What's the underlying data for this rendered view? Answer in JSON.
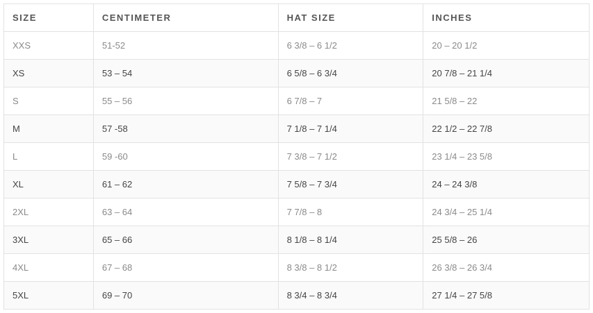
{
  "headers": [
    "SIZE",
    "CENTIMETER",
    "HAT SIZE",
    "INCHES"
  ],
  "rows": [
    [
      "XXS",
      "51-52",
      "6 3/8 – 6 1/2",
      "20 – 20 1/2"
    ],
    [
      "XS",
      "53 – 54",
      "6 5/8 – 6 3/4",
      "20 7/8 – 21 1/4"
    ],
    [
      "S",
      "55 – 56",
      "6 7/8 – 7",
      "21 5/8 – 22"
    ],
    [
      "M",
      "57 -58",
      "7 1/8 – 7 1/4",
      "22 1/2 – 22 7/8"
    ],
    [
      "L",
      "59 -60",
      "7 3/8 – 7 1/2",
      "23 1/4 – 23 5/8"
    ],
    [
      "XL",
      "61 – 62",
      "7 5/8 – 7 3/4",
      "24 – 24 3/8"
    ],
    [
      "2XL",
      "63 – 64",
      "7 7/8 – 8",
      "24 3/4 – 25 1/4"
    ],
    [
      "3XL",
      "65 – 66",
      "8 1/8 – 8 1/4",
      "25 5/8 – 26"
    ],
    [
      "4XL",
      "67 – 68",
      "8 3/8 – 8 1/2",
      "26 3/8 – 26 3/4"
    ],
    [
      "5XL",
      "69 – 70",
      "8 3/4 – 8 3/4",
      "27 1/4 – 27 5/8"
    ]
  ]
}
